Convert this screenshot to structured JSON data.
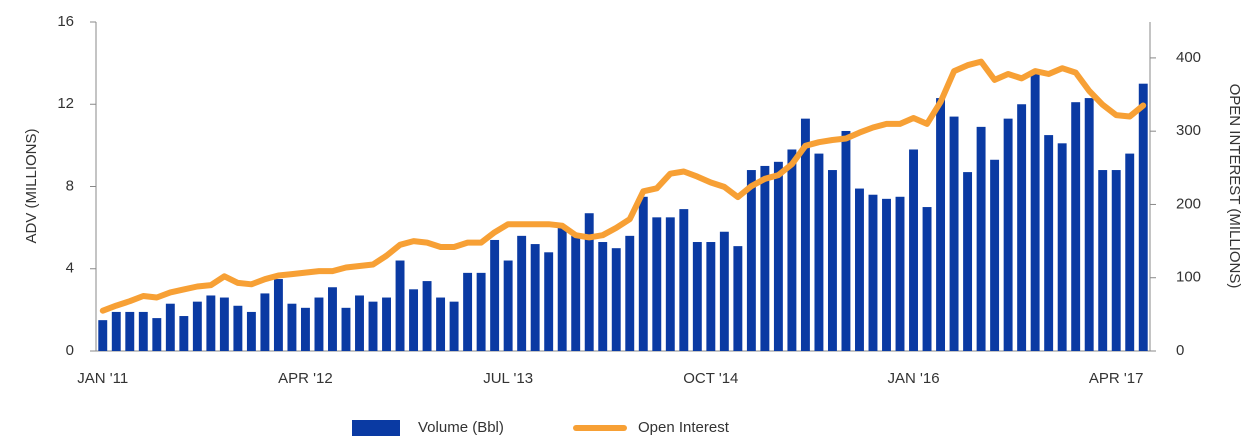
{
  "chart_data": {
    "type": "bar_line",
    "categories": [
      "JAN '11",
      null,
      null,
      null,
      null,
      null,
      null,
      null,
      null,
      null,
      null,
      null,
      null,
      null,
      null,
      "APR '12",
      null,
      null,
      null,
      null,
      null,
      null,
      null,
      null,
      null,
      null,
      null,
      null,
      null,
      null,
      "JUL '13",
      null,
      null,
      null,
      null,
      null,
      null,
      null,
      null,
      null,
      null,
      null,
      null,
      null,
      null,
      "OCT '14",
      null,
      null,
      null,
      null,
      null,
      null,
      null,
      null,
      null,
      null,
      null,
      null,
      null,
      null,
      "JAN '16",
      null,
      null,
      null,
      null,
      null,
      null,
      null,
      null,
      null,
      null,
      null,
      null,
      null,
      null,
      "APR '17",
      null,
      null
    ],
    "series": [
      {
        "name": "Volume (Bbl)",
        "color": "#0a3aa3",
        "type": "bar",
        "values": [
          1.5,
          1.9,
          1.9,
          1.9,
          1.6,
          2.3,
          1.7,
          2.4,
          2.7,
          2.6,
          2.2,
          1.9,
          2.8,
          3.5,
          2.3,
          2.1,
          2.6,
          3.1,
          2.1,
          2.7,
          2.4,
          2.6,
          4.4,
          3.0,
          3.4,
          2.6,
          2.4,
          3.8,
          3.8,
          5.4,
          4.4,
          5.6,
          5.2,
          4.8,
          6.0,
          5.6,
          6.7,
          5.3,
          5.0,
          5.6,
          7.5,
          6.5,
          6.5,
          6.9,
          5.3,
          5.3,
          5.8,
          5.1,
          8.8,
          9.0,
          9.2,
          9.8,
          11.3,
          9.6,
          8.8,
          10.7,
          7.9,
          7.6,
          7.4,
          7.5,
          9.8,
          7.0,
          12.3,
          11.4,
          8.7,
          10.9,
          9.3,
          11.3,
          12.0,
          13.6,
          10.5,
          10.1,
          12.1,
          12.3,
          8.8,
          8.8,
          9.6,
          13.0
        ]
      },
      {
        "name": "Open Interest",
        "color": "#f7a035",
        "type": "line",
        "axis": "y2",
        "values": [
          55,
          62,
          68,
          75,
          73,
          80,
          84,
          88,
          90,
          102,
          93,
          91,
          98,
          103,
          105,
          107,
          109,
          109,
          114,
          116,
          118,
          130,
          145,
          150,
          148,
          142,
          142,
          148,
          148,
          162,
          173,
          173,
          173,
          173,
          171,
          158,
          155,
          158,
          168,
          180,
          218,
          222,
          242,
          245,
          238,
          230,
          224,
          210,
          225,
          235,
          240,
          255,
          280,
          285,
          288,
          290,
          298,
          305,
          310,
          310,
          318,
          310,
          340,
          382,
          390,
          395,
          370,
          378,
          372,
          382,
          378,
          386,
          380,
          355,
          336,
          322,
          320,
          335
        ]
      }
    ],
    "ylabel": "ADV (MILLIONS)",
    "y2label": "OPEN INTEREST (MILLIONS)",
    "ylim": [
      0,
      16
    ],
    "yticks": [
      0,
      4,
      8,
      12,
      16
    ],
    "y2lim": [
      0,
      449
    ],
    "y2ticks": [
      0,
      100,
      200,
      300,
      400
    ],
    "legend": "bottom"
  }
}
